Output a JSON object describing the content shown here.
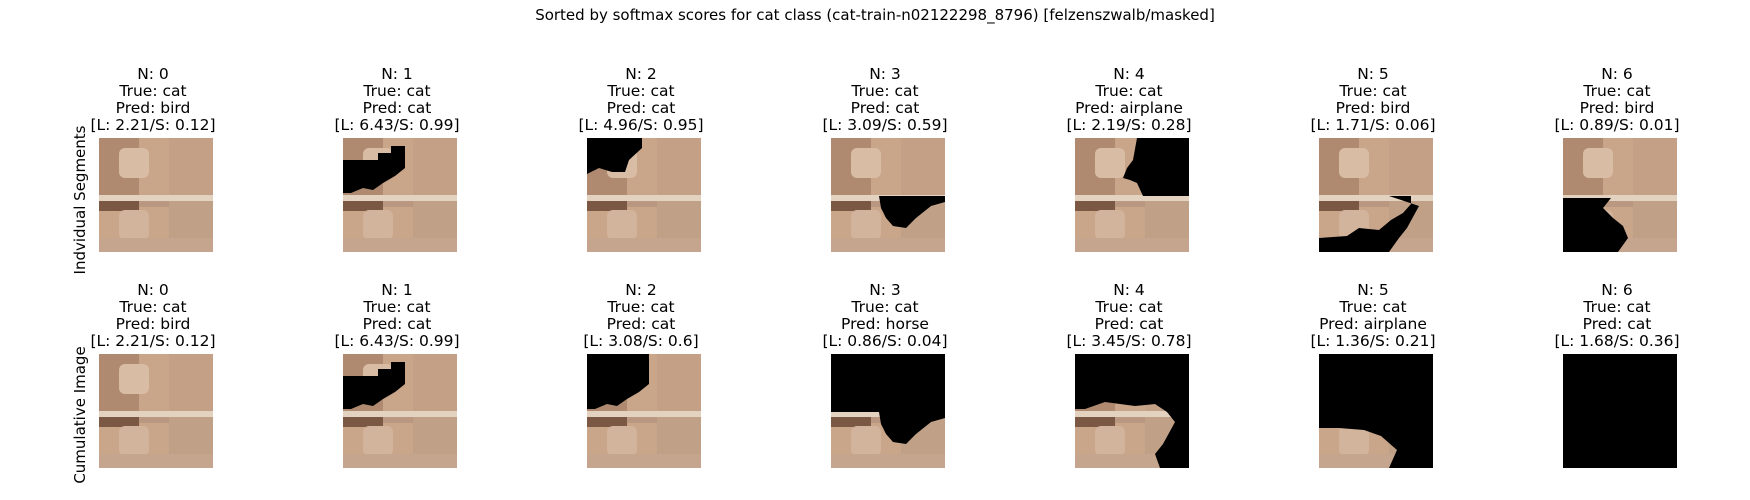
{
  "title": "Sorted by softmax scores for cat class (cat-train-n02122298_8796) [felzenszwalb/masked]",
  "row_labels": [
    "Indvidual Segments",
    "Cumulative Image"
  ],
  "colors": {
    "correct": "#008000",
    "wrong": "#ff0000",
    "highlight": "#ffff00",
    "mask": "#000000"
  },
  "individual": [
    {
      "n": "N: 0",
      "true": "True: cat",
      "pred": "Pred: bird",
      "score": "[L: 2.21/S: 0.12]",
      "border": "wrong"
    },
    {
      "n": "N: 1",
      "true": "True: cat",
      "pred": "Pred: cat",
      "score": "[L: 6.43/S: 0.99]",
      "border": "correct"
    },
    {
      "n": "N: 2",
      "true": "True: cat",
      "pred": "Pred: cat",
      "score": "[L: 4.96/S: 0.95]",
      "border": "correct"
    },
    {
      "n": "N: 3",
      "true": "True: cat",
      "pred": "Pred: cat",
      "score": "[L: 3.09/S: 0.59]",
      "border": "correct"
    },
    {
      "n": "N: 4",
      "true": "True: cat",
      "pred": "Pred: airplane",
      "score": "[L: 2.19/S: 0.28]",
      "border": "wrong"
    },
    {
      "n": "N: 5",
      "true": "True: cat",
      "pred": "Pred: bird",
      "score": "[L: 1.71/S: 0.06]",
      "border": "wrong"
    },
    {
      "n": "N: 6",
      "true": "True: cat",
      "pred": "Pred: bird",
      "score": "[L: 0.89/S: 0.01]",
      "border": "wrong"
    }
  ],
  "cumulative": [
    {
      "n": "N: 0",
      "true": "True: cat",
      "pred": "Pred: bird",
      "score": "[L: 2.21/S: 0.12]",
      "border": "wrong"
    },
    {
      "n": "N: 1",
      "true": "True: cat",
      "pred": "Pred: cat",
      "score": "[L: 6.43/S: 0.99]",
      "border": "highlight"
    },
    {
      "n": "N: 2",
      "true": "True: cat",
      "pred": "Pred: cat",
      "score": "[L: 3.08/S: 0.6]",
      "border": "correct"
    },
    {
      "n": "N: 3",
      "true": "True: cat",
      "pred": "Pred: horse",
      "score": "[L: 0.86/S: 0.04]",
      "border": "wrong"
    },
    {
      "n": "N: 4",
      "true": "True: cat",
      "pred": "Pred: cat",
      "score": "[L: 3.45/S: 0.78]",
      "border": "correct"
    },
    {
      "n": "N: 5",
      "true": "True: cat",
      "pred": "Pred: airplane",
      "score": "[L: 1.36/S: 0.21]",
      "border": "wrong"
    },
    {
      "n": "N: 6",
      "true": "True: cat",
      "pred": "Pred: cat",
      "score": "[L: 1.68/S: 0.36]",
      "border": "correct"
    }
  ]
}
